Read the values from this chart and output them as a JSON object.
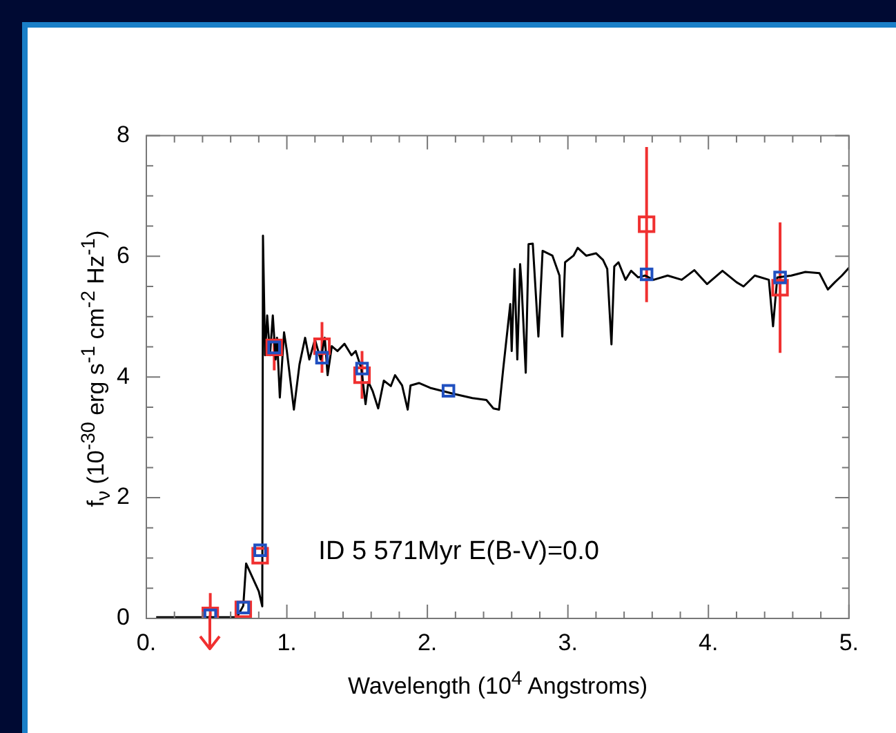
{
  "chart_data": {
    "type": "line",
    "xlabel": "Wavelength (10$^{4}$ Angstroms)",
    "ylabel": "f$_{ν}$ (10$^{-30}$ erg s$^{-1}$ cm$^{-2}$ Hz$^{-1}$)",
    "annotations": [
      "ID 5 571Myr E(B-V)=0.0"
    ],
    "xlim": [
      0,
      5
    ],
    "ylim": [
      0,
      8
    ],
    "xticks": [
      {
        "value": 0,
        "label": "0."
      },
      {
        "value": 0.2,
        "label": null
      },
      {
        "value": 0.4,
        "label": null
      },
      {
        "value": 0.6,
        "label": null
      },
      {
        "value": 0.8,
        "label": null
      },
      {
        "value": 1,
        "label": "1."
      },
      {
        "value": 1.2,
        "label": null
      },
      {
        "value": 1.4,
        "label": null
      },
      {
        "value": 1.6,
        "label": null
      },
      {
        "value": 1.8,
        "label": null
      },
      {
        "value": 2,
        "label": "2."
      },
      {
        "value": 2.2,
        "label": null
      },
      {
        "value": 2.4,
        "label": null
      },
      {
        "value": 2.6,
        "label": null
      },
      {
        "value": 2.8,
        "label": null
      },
      {
        "value": 3,
        "label": "3."
      },
      {
        "value": 3.2,
        "label": null
      },
      {
        "value": 3.4,
        "label": null
      },
      {
        "value": 3.6,
        "label": null
      },
      {
        "value": 3.8,
        "label": null
      },
      {
        "value": 4,
        "label": "4."
      },
      {
        "value": 4.2,
        "label": null
      },
      {
        "value": 4.4,
        "label": null
      },
      {
        "value": 4.6,
        "label": null
      },
      {
        "value": 4.8,
        "label": null
      },
      {
        "value": 5,
        "label": "5."
      }
    ],
    "yticks": [
      0,
      {
        "value": 0.5,
        "label": null
      },
      {
        "value": 1,
        "label": null
      },
      {
        "value": 1.5,
        "label": null
      },
      2,
      {
        "value": 2.5,
        "label": null
      },
      {
        "value": 3,
        "label": null
      },
      {
        "value": 3.5,
        "label": null
      },
      4,
      {
        "value": 4.5,
        "label": null
      },
      {
        "value": 5,
        "label": null
      },
      {
        "value": 5.5,
        "label": null
      },
      6,
      {
        "value": 6.5,
        "label": null
      },
      {
        "value": 7,
        "label": null
      },
      {
        "value": 7.5,
        "label": null
      },
      8
    ],
    "legend": false,
    "series": [
      {
        "type": "line",
        "color": "#000000",
        "marker": "none",
        "line_style": "solid",
        "x": [
          0.07,
          0.3,
          0.5,
          0.645,
          0.69,
          0.71,
          0.8,
          0.825,
          0.83,
          0.845,
          0.86,
          0.88,
          0.9,
          0.92,
          0.93,
          0.95,
          0.98,
          1.0,
          1.05,
          1.09,
          1.13,
          1.16,
          1.2,
          1.24,
          1.27,
          1.29,
          1.32,
          1.36,
          1.41,
          1.46,
          1.49,
          1.53,
          1.56,
          1.58,
          1.61,
          1.65,
          1.69,
          1.74,
          1.77,
          1.82,
          1.86,
          1.88,
          1.94,
          2.02,
          2.19,
          2.32,
          2.42,
          2.47,
          2.51,
          2.54,
          2.59,
          2.6,
          2.62,
          2.64,
          2.66,
          2.67,
          2.7,
          2.72,
          2.75,
          2.79,
          2.82,
          2.89,
          2.94,
          2.96,
          2.98,
          3.04,
          3.07,
          3.13,
          3.2,
          3.25,
          3.28,
          3.31,
          3.33,
          3.36,
          3.41,
          3.45,
          3.5,
          3.55,
          3.61,
          3.71,
          3.81,
          3.9,
          3.99,
          4.1,
          4.2,
          4.25,
          4.33,
          4.43,
          4.46,
          4.49,
          4.59,
          4.69,
          4.79,
          4.85,
          4.9,
          4.95,
          5.0
        ],
        "values": [
          0.02,
          0.02,
          0.02,
          0.02,
          0.21,
          0.91,
          0.45,
          0.2,
          6.34,
          4.36,
          5.02,
          4.36,
          5.02,
          4.29,
          4.65,
          3.66,
          4.74,
          4.43,
          3.46,
          4.21,
          4.65,
          4.29,
          4.62,
          4.29,
          4.65,
          4.03,
          4.51,
          4.43,
          4.55,
          4.36,
          4.43,
          4.14,
          3.55,
          3.92,
          3.77,
          3.48,
          3.94,
          3.85,
          4.03,
          3.86,
          3.46,
          3.86,
          3.9,
          3.82,
          3.72,
          3.65,
          3.62,
          3.48,
          3.46,
          4.14,
          5.21,
          4.43,
          5.79,
          4.29,
          5.87,
          5.54,
          4.07,
          6.2,
          6.21,
          4.67,
          6.09,
          6.01,
          5.68,
          4.67,
          5.9,
          6.01,
          6.14,
          6.01,
          6.05,
          5.94,
          5.79,
          4.54,
          5.83,
          5.9,
          5.61,
          5.76,
          5.65,
          5.68,
          5.61,
          5.68,
          5.61,
          5.77,
          5.54,
          5.76,
          5.57,
          5.5,
          5.68,
          5.61,
          4.84,
          5.65,
          5.68,
          5.74,
          5.72,
          5.45,
          5.57,
          5.68,
          5.81
        ]
      },
      {
        "type": "scatter",
        "color": "#f03030",
        "marker": "square",
        "x": [
          0.455,
          0.69,
          0.81,
          0.91,
          1.25,
          1.535,
          3.56,
          4.51
        ],
        "values": [
          0.05,
          0.15,
          1.04,
          4.49,
          4.51,
          4.03,
          6.53,
          5.48
        ],
        "errors": [
          [
            0,
            0.42
          ],
          null,
          null,
          [
            4.11,
            4.65
          ],
          [
            4.07,
            4.91
          ],
          [
            3.64,
            4.43
          ],
          [
            5.24,
            7.81
          ],
          [
            4.4,
            6.56
          ]
        ]
      },
      {
        "type": "scatter",
        "color": "#2050c0",
        "marker": "square",
        "x": [
          0.455,
          0.69,
          0.81,
          0.91,
          1.25,
          1.535,
          2.15,
          3.56,
          4.51
        ],
        "values": [
          0.05,
          0.18,
          1.13,
          4.49,
          4.32,
          4.14,
          3.77,
          5.7,
          5.65
        ]
      }
    ]
  }
}
